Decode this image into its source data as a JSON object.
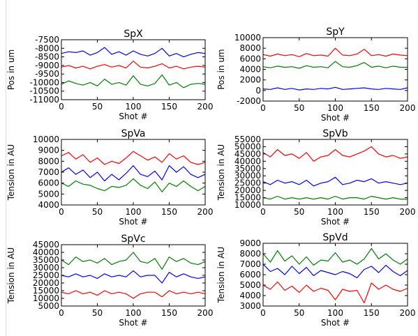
{
  "chart_data": [
    {
      "type": "line",
      "title": "SpX",
      "xlabel": "Shot #",
      "ylabel": "Pos in um",
      "xlim": [
        0,
        200
      ],
      "ylim": [
        -11000,
        -7500
      ],
      "xticks": [
        "0",
        "50",
        "100",
        "150",
        "200"
      ],
      "yticks": [
        "-11000",
        "-10500",
        "-10000",
        "-9500",
        "-9000",
        "-8500",
        "-8000",
        "-7500"
      ],
      "x": [
        0,
        10,
        20,
        30,
        40,
        50,
        60,
        70,
        80,
        90,
        100,
        110,
        120,
        130,
        140,
        150,
        160,
        170,
        180,
        190,
        200
      ],
      "series": [
        {
          "color": "#0000ff",
          "values": [
            -8300,
            -8200,
            -8250,
            -8150,
            -8400,
            -8250,
            -7950,
            -8350,
            -8200,
            -8400,
            -8150,
            -8350,
            -8450,
            -8300,
            -8000,
            -8450,
            -8300,
            -8500,
            -8350,
            -8250,
            -8300
          ]
        },
        {
          "color": "#ff0000",
          "values": [
            -9100,
            -9000,
            -9150,
            -9050,
            -9200,
            -9050,
            -8950,
            -9100,
            -9000,
            -9150,
            -8750,
            -9100,
            -9150,
            -9050,
            -8900,
            -9150,
            -9050,
            -9200,
            -9100,
            -9050,
            -9100
          ]
        },
        {
          "color": "#008000",
          "values": [
            -10100,
            -9900,
            -10050,
            -10150,
            -10000,
            -10200,
            -9800,
            -10100,
            -10000,
            -10150,
            -9600,
            -10100,
            -10200,
            -10050,
            -9550,
            -10150,
            -10000,
            -10300,
            -10100,
            -10050,
            -10100
          ]
        }
      ]
    },
    {
      "type": "line",
      "title": "SpY",
      "xlabel": "Shot #",
      "ylabel": "Pos in um",
      "xlim": [
        0,
        200
      ],
      "ylim": [
        -2000,
        10000
      ],
      "xticks": [
        "0",
        "50",
        "100",
        "150",
        "200"
      ],
      "yticks": [
        "-2000",
        "0",
        "2000",
        "4000",
        "6000",
        "8000",
        "10000"
      ],
      "x": [
        0,
        10,
        20,
        30,
        40,
        50,
        60,
        70,
        80,
        90,
        100,
        110,
        120,
        130,
        140,
        150,
        160,
        170,
        180,
        190,
        200
      ],
      "series": [
        {
          "color": "#ff0000",
          "values": [
            6800,
            6500,
            6900,
            6600,
            6800,
            6400,
            7000,
            6600,
            6700,
            6500,
            8000,
            6700,
            6600,
            6900,
            7800,
            6600,
            6800,
            6500,
            6900,
            6700,
            6600
          ]
        },
        {
          "color": "#008000",
          "values": [
            4500,
            4300,
            4600,
            4400,
            4500,
            4200,
            4700,
            4400,
            4500,
            4300,
            5500,
            4500,
            4400,
            4700,
            5300,
            4400,
            4600,
            4300,
            4600,
            4400,
            4400
          ]
        },
        {
          "color": "#0000ff",
          "values": [
            300,
            200,
            500,
            200,
            400,
            100,
            300,
            200,
            400,
            300,
            600,
            200,
            300,
            400,
            500,
            300,
            200,
            400,
            300,
            200,
            500
          ]
        }
      ]
    },
    {
      "type": "line",
      "title": "SpVa",
      "xlabel": "Shot #",
      "ylabel": "Tension in AU",
      "xlim": [
        0,
        200
      ],
      "ylim": [
        4000,
        10000
      ],
      "xticks": [
        "0",
        "50",
        "100",
        "150",
        "200"
      ],
      "yticks": [
        "4000",
        "5000",
        "6000",
        "7000",
        "8000",
        "9000",
        "10000"
      ],
      "x": [
        0,
        10,
        20,
        30,
        40,
        50,
        60,
        70,
        80,
        90,
        100,
        110,
        120,
        130,
        140,
        150,
        160,
        170,
        180,
        190,
        200
      ],
      "series": [
        {
          "color": "#ff0000",
          "values": [
            8500,
            8800,
            8200,
            8600,
            7900,
            8300,
            7700,
            8000,
            7800,
            8300,
            8900,
            8500,
            8100,
            8400,
            7900,
            8700,
            8200,
            8500,
            7900,
            7700,
            7900
          ]
        },
        {
          "color": "#0000ff",
          "values": [
            7000,
            7400,
            6800,
            7200,
            6500,
            7000,
            6200,
            6800,
            6300,
            6900,
            7600,
            6800,
            6600,
            7100,
            6300,
            7600,
            7000,
            7500,
            6800,
            6500,
            6800
          ]
        },
        {
          "color": "#008000",
          "values": [
            6000,
            5700,
            6200,
            5900,
            5800,
            5500,
            5300,
            5700,
            5600,
            5800,
            6400,
            5800,
            5500,
            6100,
            5200,
            6000,
            5700,
            6200,
            5700,
            5300,
            5700
          ]
        }
      ]
    },
    {
      "type": "line",
      "title": "SpVb",
      "xlabel": "Shot #",
      "ylabel": "Tension in AU",
      "xlim": [
        0,
        200
      ],
      "ylim": [
        10000,
        55000
      ],
      "xticks": [
        "0",
        "50",
        "100",
        "150",
        "200"
      ],
      "yticks": [
        "10000",
        "15000",
        "20000",
        "25000",
        "30000",
        "35000",
        "40000",
        "45000",
        "50000",
        "55000"
      ],
      "x": [
        0,
        10,
        20,
        30,
        40,
        50,
        60,
        70,
        80,
        90,
        100,
        110,
        120,
        130,
        140,
        150,
        160,
        170,
        180,
        190,
        200
      ],
      "series": [
        {
          "color": "#ff0000",
          "values": [
            46000,
            43000,
            48000,
            44000,
            45000,
            42000,
            46000,
            40000,
            43000,
            44000,
            48000,
            44000,
            43000,
            45000,
            47000,
            50000,
            45000,
            43000,
            44000,
            42000,
            43000
          ]
        },
        {
          "color": "#0000ff",
          "values": [
            26000,
            24000,
            27000,
            25000,
            26000,
            24000,
            27000,
            23000,
            25000,
            26000,
            29000,
            24000,
            25000,
            27000,
            26000,
            28000,
            25000,
            26000,
            25000,
            24000,
            25000
          ]
        },
        {
          "color": "#008000",
          "values": [
            15000,
            14000,
            16000,
            14000,
            15000,
            14000,
            15000,
            14000,
            15000,
            14000,
            16000,
            14000,
            15000,
            15000,
            14000,
            16000,
            15000,
            14000,
            15000,
            14000,
            14000
          ]
        }
      ]
    },
    {
      "type": "line",
      "title": "SpVc",
      "xlabel": "Shot #",
      "ylabel": "Tension in AU",
      "xlim": [
        0,
        200
      ],
      "ylim": [
        5000,
        45000
      ],
      "xticks": [
        "0",
        "50",
        "100",
        "150",
        "200"
      ],
      "yticks": [
        "5000",
        "10000",
        "15000",
        "20000",
        "25000",
        "30000",
        "35000",
        "40000",
        "45000"
      ],
      "x": [
        0,
        10,
        20,
        30,
        40,
        50,
        60,
        70,
        80,
        90,
        100,
        110,
        120,
        130,
        140,
        150,
        160,
        170,
        180,
        190,
        200
      ],
      "series": [
        {
          "color": "#008000",
          "values": [
            35000,
            32000,
            37000,
            34000,
            35000,
            33000,
            36000,
            32000,
            34000,
            35000,
            40000,
            34000,
            33000,
            36000,
            29000,
            37000,
            34000,
            36000,
            33000,
            32000,
            34000
          ]
        },
        {
          "color": "#0000ff",
          "values": [
            25000,
            24000,
            26000,
            24000,
            25000,
            23000,
            26000,
            24000,
            25000,
            24000,
            28000,
            24000,
            25000,
            25000,
            20000,
            27000,
            24000,
            26000,
            24000,
            23000,
            24000
          ]
        },
        {
          "color": "#ff0000",
          "values": [
            14000,
            13000,
            15000,
            13000,
            14000,
            12000,
            15000,
            13000,
            14000,
            13000,
            10000,
            13000,
            14000,
            14000,
            11000,
            15000,
            13000,
            14000,
            13000,
            14000,
            13000
          ]
        }
      ]
    },
    {
      "type": "line",
      "title": "SpVd",
      "xlabel": "Shot #",
      "ylabel": "Tension in AU",
      "xlim": [
        0,
        200
      ],
      "ylim": [
        3000,
        9000
      ],
      "xticks": [
        "0",
        "50",
        "100",
        "150",
        "200"
      ],
      "yticks": [
        "3000",
        "4000",
        "5000",
        "6000",
        "7000",
        "8000",
        "9000"
      ],
      "x": [
        0,
        10,
        20,
        30,
        40,
        50,
        60,
        70,
        80,
        90,
        100,
        110,
        120,
        130,
        140,
        150,
        160,
        170,
        180,
        190,
        200
      ],
      "series": [
        {
          "color": "#008000",
          "values": [
            8000,
            7200,
            8300,
            7300,
            7800,
            7000,
            7700,
            6900,
            7400,
            7300,
            8100,
            7200,
            7400,
            7000,
            7500,
            8500,
            7500,
            8000,
            7400,
            7000,
            7500
          ]
        },
        {
          "color": "#0000ff",
          "values": [
            7000,
            6300,
            6600,
            6000,
            6800,
            6100,
            6700,
            5900,
            6400,
            6200,
            6000,
            6300,
            6100,
            5700,
            6500,
            6800,
            6200,
            6900,
            6300,
            5900,
            6400
          ]
        },
        {
          "color": "#ff0000",
          "values": [
            5000,
            4600,
            5300,
            4500,
            4900,
            4300,
            5000,
            4400,
            4700,
            4500,
            3600,
            4600,
            4400,
            4500,
            3300,
            5200,
            4600,
            5000,
            4600,
            4400,
            4700
          ]
        }
      ]
    }
  ]
}
